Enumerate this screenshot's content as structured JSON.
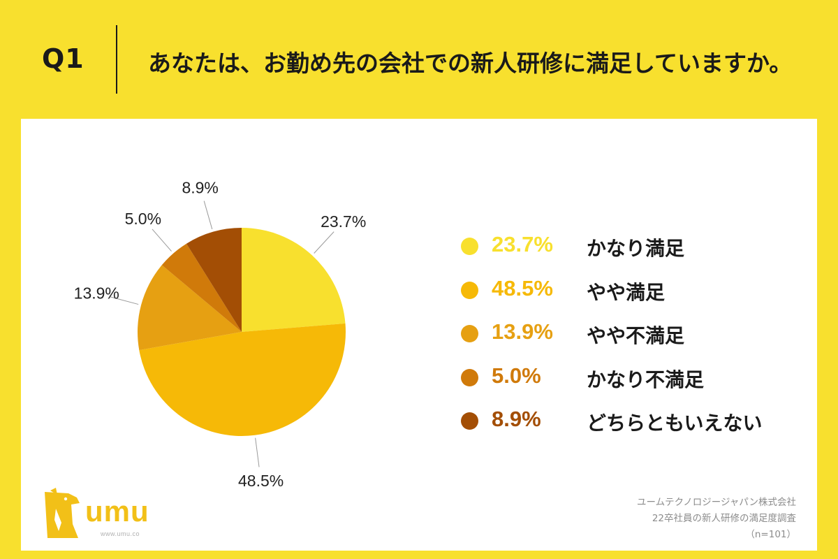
{
  "header": {
    "q_label": "Q1",
    "question": "あなたは、お勤め先の会社での新人研修に満足していますか。"
  },
  "chart_data": {
    "type": "pie",
    "categories": [
      "かなり満足",
      "やや満足",
      "やや不満足",
      "かなり不満足",
      "どちらともいえない"
    ],
    "values": [
      23.7,
      48.5,
      13.9,
      5.0,
      8.9
    ],
    "labels": [
      "23.7%",
      "48.5%",
      "13.9%",
      "5.0%",
      "8.9%"
    ],
    "colors": [
      "#f8e02e",
      "#f6b907",
      "#e6a012",
      "#d07a0a",
      "#a34e05"
    ],
    "start": "12 o'clock",
    "direction": "clockwise",
    "legend_placement": "right"
  },
  "legend": [
    {
      "pct": "23.7%",
      "name": "かなり満足",
      "color": "#f8e02e"
    },
    {
      "pct": "48.5%",
      "name": "やや満足",
      "color": "#f6b907"
    },
    {
      "pct": "13.9%",
      "name": "やや不満足",
      "color": "#e6a012"
    },
    {
      "pct": "5.0%",
      "name": "かなり不満足",
      "color": "#d07a0a"
    },
    {
      "pct": "8.9%",
      "name": "どちらともいえない",
      "color": "#a34e05"
    }
  ],
  "logo": {
    "text": "umu",
    "url": "www.umu.co",
    "icon": "horse-head-logo-icon",
    "color": "#f2c018"
  },
  "source": {
    "line1": "ユームテクノロジージャパン株式会社",
    "line2": "22卒社員の新人研修の満足度調査",
    "line3": "（n=101）"
  }
}
